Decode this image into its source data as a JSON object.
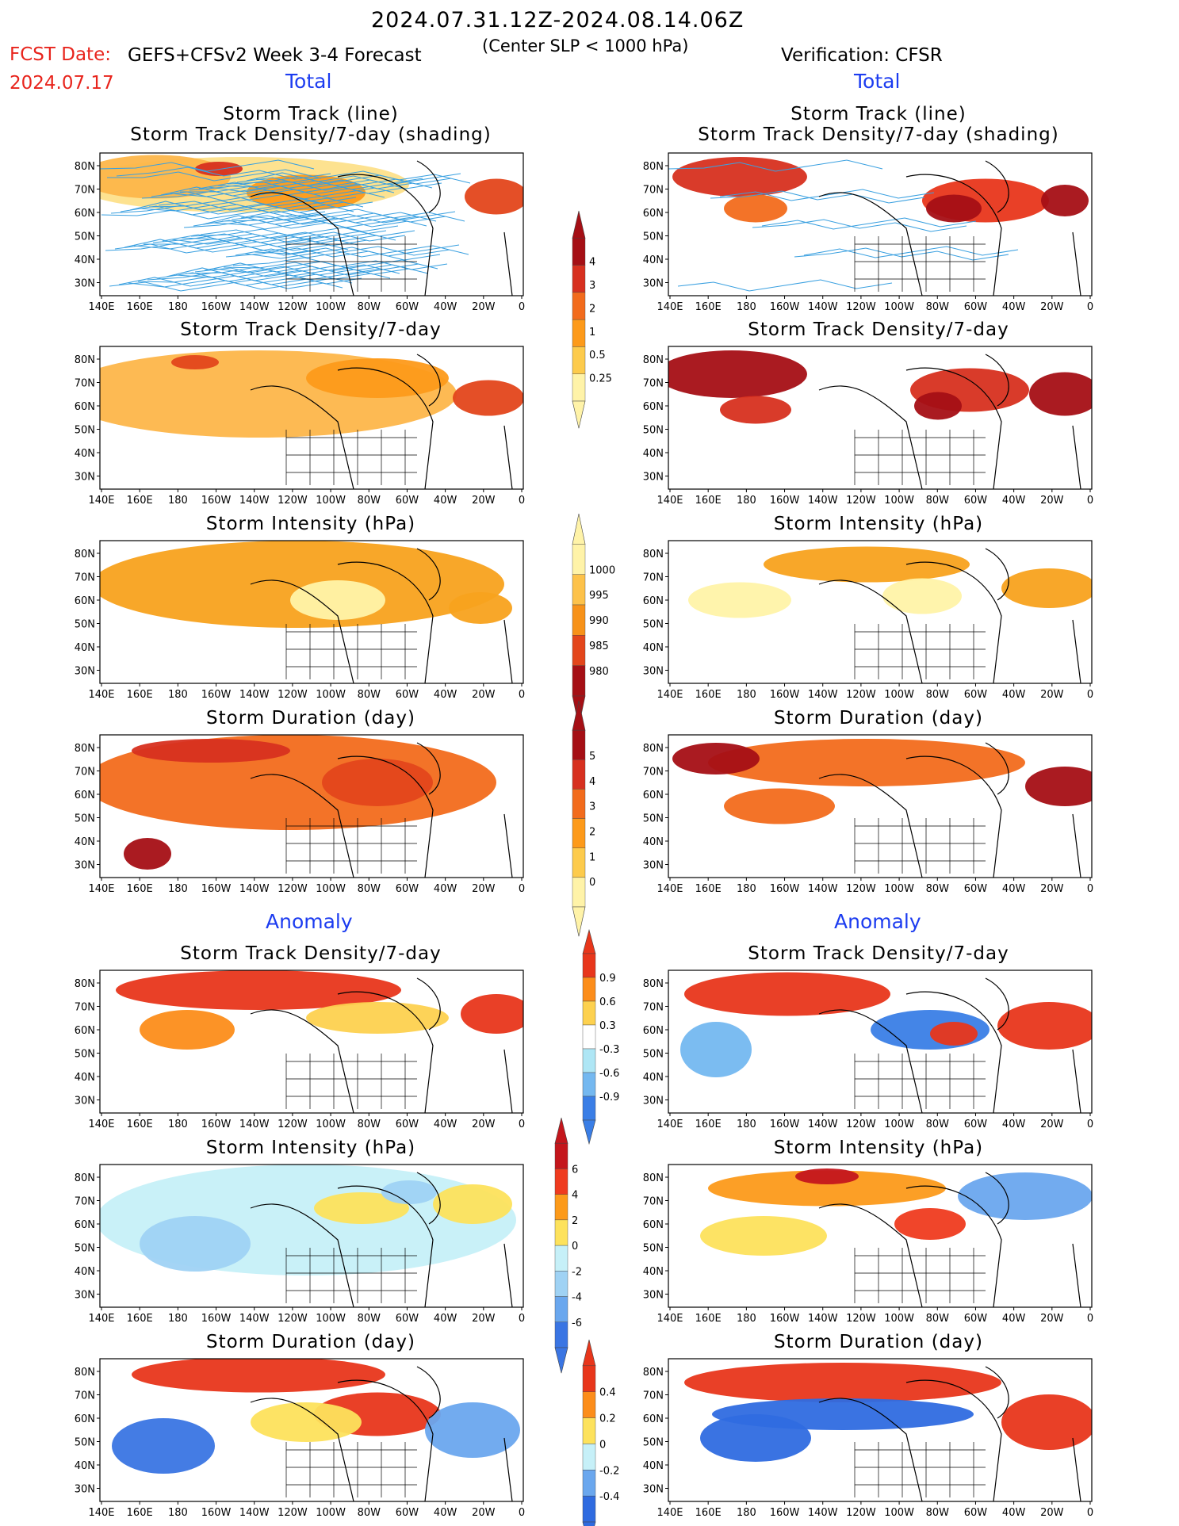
{
  "header": {
    "date_range": "2024.07.31.12Z-2024.08.14.06Z",
    "fcst_date_label": "FCST Date:",
    "fcst_date_value": "2024.07.17",
    "model": "GEFS+CFSv2 Week 3-4 Forecast",
    "criterion": "(Center SLP < 1000 hPa)",
    "verification": "Verification: CFSR"
  },
  "sections": {
    "total": "Total",
    "anomaly": "Anomaly"
  },
  "panel_titles": {
    "track_line": "Storm Track (line)",
    "track_shading": "Storm Track Density/7-day (shading)",
    "density": "Storm Track Density/7-day",
    "intensity": "Storm Intensity (hPa)",
    "duration": "Storm Duration (day)"
  },
  "axes": {
    "lon_labels": [
      "140E",
      "160E",
      "180",
      "160W",
      "140W",
      "120W",
      "100W",
      "80W",
      "60W",
      "40W",
      "20W",
      "0"
    ],
    "lat_labels": [
      "80N",
      "70N",
      "60N",
      "50N",
      "40N",
      "30N"
    ]
  },
  "colorbars": [
    {
      "id": "density",
      "labels": [
        "4",
        "3",
        "2",
        "1",
        "0.5",
        "0.25"
      ],
      "colors": [
        "#a50f15",
        "#d7301f",
        "#f26b1c",
        "#fd9a1a",
        "#fdcb4c",
        "#fff3a8"
      ]
    },
    {
      "id": "intensity",
      "labels": [
        "1000",
        "995",
        "990",
        "985",
        "980"
      ],
      "colors": [
        "#fff3a8",
        "#fdc24a",
        "#f79219",
        "#e3461b",
        "#a50f15"
      ]
    },
    {
      "id": "duration",
      "labels": [
        "5",
        "4",
        "3",
        "2",
        "1",
        "0"
      ],
      "colors": [
        "#a50f15",
        "#d7301f",
        "#f26b1c",
        "#fd9a1a",
        "#fdcb4c",
        "#fff3a8"
      ]
    },
    {
      "id": "density_anom",
      "labels": [
        "0.9",
        "0.6",
        "0.3",
        "-0.3",
        "-0.6",
        "-0.9"
      ],
      "colors": [
        "#e8361b",
        "#fc8d1a",
        "#fdd14f",
        "#ffffff",
        "#aee6f5",
        "#74b8f0",
        "#3a7ee6"
      ]
    },
    {
      "id": "intensity_anom",
      "labels": [
        "6",
        "4",
        "2",
        "0",
        "-2",
        "-4",
        "-6"
      ],
      "colors": [
        "#c4161c",
        "#ef3b1f",
        "#fc9a1a",
        "#fde25c",
        "#c6f0f8",
        "#9fd2f4",
        "#6aa7ee",
        "#3a75e3"
      ]
    },
    {
      "id": "duration_anom",
      "labels": [
        "0.4",
        "0.2",
        "0",
        "-0.2",
        "-0.4"
      ],
      "colors": [
        "#e8361b",
        "#fc8d1a",
        "#fde25c",
        "#c6f0f8",
        "#6aa7ee",
        "#2f6be0"
      ]
    }
  ],
  "colors": {
    "title_red": "#e8241c",
    "section_blue": "#1c3cf0",
    "track_line": "#3aa0e0"
  }
}
